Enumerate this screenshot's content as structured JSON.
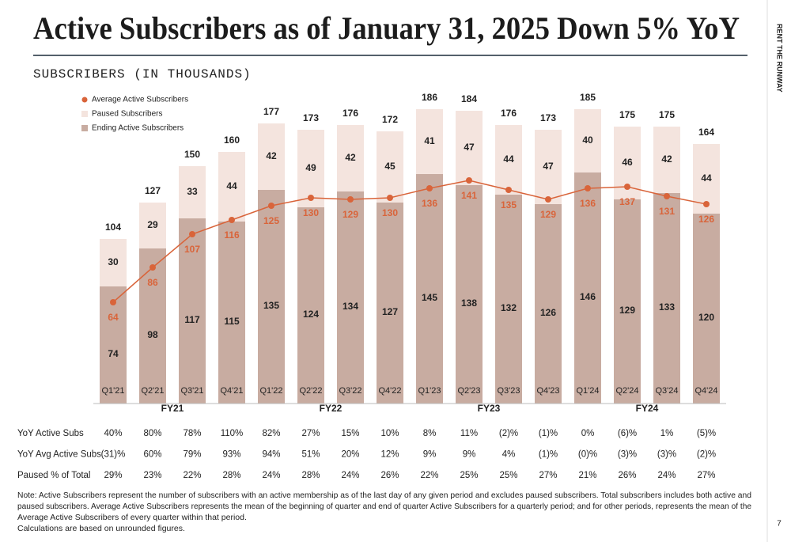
{
  "chart_data": {
    "type": "stacked_bar_line",
    "title": "Active Subscribers as of January 31, 2025 Down 5% YoY",
    "subtitle": "SUBSCRIBERS (IN THOUSANDS)",
    "categories": [
      "Q1'21",
      "Q2'21",
      "Q3'21",
      "Q4'21",
      "Q1'22",
      "Q2'22",
      "Q3'22",
      "Q4'22",
      "Q1'23",
      "Q2'23",
      "Q3'23",
      "Q4'23",
      "Q1'24",
      "Q2'24",
      "Q3'24",
      "Q4'24"
    ],
    "fiscal_years": [
      "FY21",
      "FY22",
      "FY23",
      "FY24"
    ],
    "ylim": [
      0,
      200
    ],
    "series": [
      {
        "name": "Ending Active Subscribers",
        "color": "#c8aca1",
        "values": [
          74,
          98,
          117,
          115,
          135,
          124,
          134,
          127,
          145,
          138,
          132,
          126,
          146,
          129,
          133,
          120
        ]
      },
      {
        "name": "Paused Subscribers",
        "color": "#f4e4de",
        "values": [
          30,
          29,
          33,
          44,
          42,
          49,
          42,
          45,
          41,
          47,
          44,
          47,
          40,
          46,
          42,
          44
        ]
      },
      {
        "name": "Average Active Subscribers",
        "color": "#d9643a",
        "type": "line",
        "values": [
          64,
          86,
          107,
          116,
          125,
          130,
          129,
          130,
          136,
          141,
          135,
          129,
          136,
          137,
          131,
          126
        ]
      }
    ],
    "totals": [
      104,
      127,
      150,
      160,
      177,
      173,
      176,
      172,
      186,
      184,
      176,
      173,
      185,
      175,
      175,
      164
    ]
  },
  "table": {
    "rows": [
      {
        "label": "YoY Active Subs",
        "cells": [
          "40%",
          "80%",
          "78%",
          "110%",
          "82%",
          "27%",
          "15%",
          "10%",
          "8%",
          "11%",
          "(2)%",
          "(1)%",
          "0%",
          "(6)%",
          "1%",
          "(5)%"
        ]
      },
      {
        "label": "YoY Avg Active Subs",
        "cells": [
          "(31)%",
          "60%",
          "79%",
          "93%",
          "94%",
          "51%",
          "20%",
          "12%",
          "9%",
          "9%",
          "4%",
          "(1)%",
          "(0)%",
          "(3)%",
          "(3)%",
          "(2)%"
        ]
      },
      {
        "label": "Paused % of Total",
        "cells": [
          "29%",
          "23%",
          "22%",
          "28%",
          "24%",
          "28%",
          "24%",
          "26%",
          "22%",
          "25%",
          "25%",
          "27%",
          "21%",
          "26%",
          "24%",
          "27%"
        ]
      }
    ]
  },
  "notes": [
    "Note: Active Subscribers represent the number of subscribers with an active membership as of the last day of any given period and excludes paused subscribers. Total subscribers includes both active and",
    "paused subscribers. Average Active Subscribers represents the mean of the beginning of quarter and end of quarter Active Subscribers for a quarterly period; and for other periods, represents the mean of the",
    "Average Active Subscribers of every quarter within that period.",
    "Calculations are based on unrounded figures."
  ],
  "sidebar": {
    "brand": "RENT THE RUNWAY",
    "page": "7"
  }
}
